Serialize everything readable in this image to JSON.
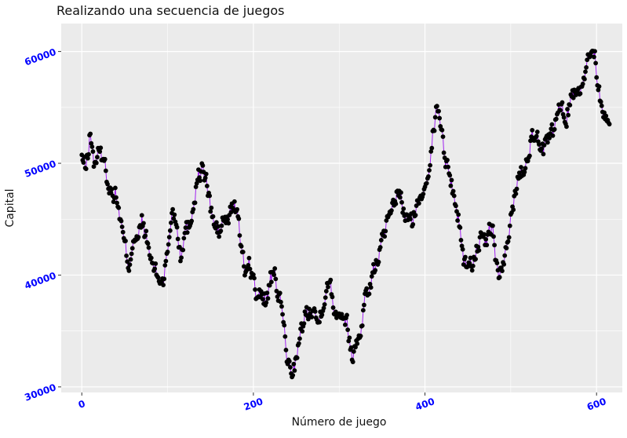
{
  "chart_data": {
    "type": "line",
    "title": "Realizando una secuencia de juegos",
    "xlabel": "Número de juego",
    "ylabel": "Capital",
    "xlim": [
      -24,
      630
    ],
    "ylim": [
      29500,
      62500
    ],
    "x_ticks": [
      0,
      200,
      400,
      600
    ],
    "x_tick_labels": [
      "0",
      "200",
      "400",
      "600"
    ],
    "y_ticks": [
      30000,
      40000,
      50000,
      60000
    ],
    "y_tick_labels": [
      "30000",
      "40000",
      "50000",
      "60000"
    ],
    "grid": true,
    "legend": "none",
    "colors": {
      "line": "#a020f0",
      "point": "#000000",
      "panel": "#ebebeb",
      "grid": "#ffffff",
      "tick_label": "#0000ff",
      "text": "#222222"
    },
    "anchors": [
      [
        0,
        50500
      ],
      [
        5,
        49500
      ],
      [
        10,
        52800
      ],
      [
        14,
        50000
      ],
      [
        20,
        50900
      ],
      [
        25,
        50600
      ],
      [
        33,
        47500
      ],
      [
        40,
        47200
      ],
      [
        48,
        43500
      ],
      [
        55,
        40800
      ],
      [
        60,
        43400
      ],
      [
        65,
        42900
      ],
      [
        70,
        44900
      ],
      [
        75,
        43300
      ],
      [
        80,
        41500
      ],
      [
        85,
        40500
      ],
      [
        90,
        39600
      ],
      [
        95,
        39600
      ],
      [
        100,
        42000
      ],
      [
        105,
        45800
      ],
      [
        110,
        45000
      ],
      [
        115,
        41800
      ],
      [
        120,
        43800
      ],
      [
        125,
        44500
      ],
      [
        130,
        46200
      ],
      [
        135,
        48700
      ],
      [
        140,
        49500
      ],
      [
        145,
        48500
      ],
      [
        150,
        46000
      ],
      [
        155,
        44400
      ],
      [
        160,
        43700
      ],
      [
        165,
        45000
      ],
      [
        170,
        44600
      ],
      [
        175,
        46300
      ],
      [
        182,
        45800
      ],
      [
        185,
        42500
      ],
      [
        190,
        40400
      ],
      [
        195,
        41200
      ],
      [
        200,
        39600
      ],
      [
        205,
        37500
      ],
      [
        210,
        38500
      ],
      [
        215,
        37600
      ],
      [
        220,
        39600
      ],
      [
        225,
        39800
      ],
      [
        230,
        38000
      ],
      [
        235,
        36000
      ],
      [
        240,
        32000
      ],
      [
        245,
        31500
      ],
      [
        250,
        32500
      ],
      [
        255,
        34500
      ],
      [
        260,
        36500
      ],
      [
        265,
        36800
      ],
      [
        270,
        37500
      ],
      [
        275,
        35500
      ],
      [
        280,
        37300
      ],
      [
        285,
        38500
      ],
      [
        290,
        39500
      ],
      [
        295,
        36500
      ],
      [
        300,
        37000
      ],
      [
        305,
        36500
      ],
      [
        310,
        35500
      ],
      [
        315,
        32500
      ],
      [
        320,
        34000
      ],
      [
        325,
        35000
      ],
      [
        330,
        38000
      ],
      [
        335,
        38800
      ],
      [
        340,
        40200
      ],
      [
        345,
        41600
      ],
      [
        350,
        43000
      ],
      [
        355,
        44500
      ],
      [
        360,
        45000
      ],
      [
        365,
        46500
      ],
      [
        370,
        47800
      ],
      [
        375,
        45500
      ],
      [
        380,
        45000
      ],
      [
        385,
        44800
      ],
      [
        390,
        45800
      ],
      [
        395,
        47000
      ],
      [
        400,
        48200
      ],
      [
        405,
        50000
      ],
      [
        410,
        53000
      ],
      [
        415,
        55200
      ],
      [
        420,
        52500
      ],
      [
        425,
        50000
      ],
      [
        430,
        48500
      ],
      [
        435,
        46800
      ],
      [
        440,
        44500
      ],
      [
        445,
        41500
      ],
      [
        450,
        40800
      ],
      [
        455,
        41000
      ],
      [
        460,
        42500
      ],
      [
        465,
        43000
      ],
      [
        470,
        42800
      ],
      [
        475,
        43900
      ],
      [
        478,
        44600
      ],
      [
        482,
        41500
      ],
      [
        487,
        39900
      ],
      [
        492,
        41000
      ],
      [
        496,
        42500
      ],
      [
        500,
        45000
      ],
      [
        505,
        47500
      ],
      [
        510,
        49000
      ],
      [
        515,
        49500
      ],
      [
        520,
        51000
      ],
      [
        525,
        52500
      ],
      [
        530,
        52800
      ],
      [
        535,
        50500
      ],
      [
        540,
        51500
      ],
      [
        545,
        52000
      ],
      [
        550,
        53000
      ],
      [
        555,
        54500
      ],
      [
        560,
        55000
      ],
      [
        565,
        54000
      ],
      [
        570,
        56000
      ],
      [
        575,
        56500
      ],
      [
        580,
        56800
      ],
      [
        585,
        57500
      ],
      [
        590,
        59000
      ],
      [
        595,
        60500
      ],
      [
        598,
        60200
      ],
      [
        600,
        58000
      ],
      [
        605,
        55500
      ],
      [
        610,
        54000
      ],
      [
        615,
        53500
      ]
    ]
  }
}
